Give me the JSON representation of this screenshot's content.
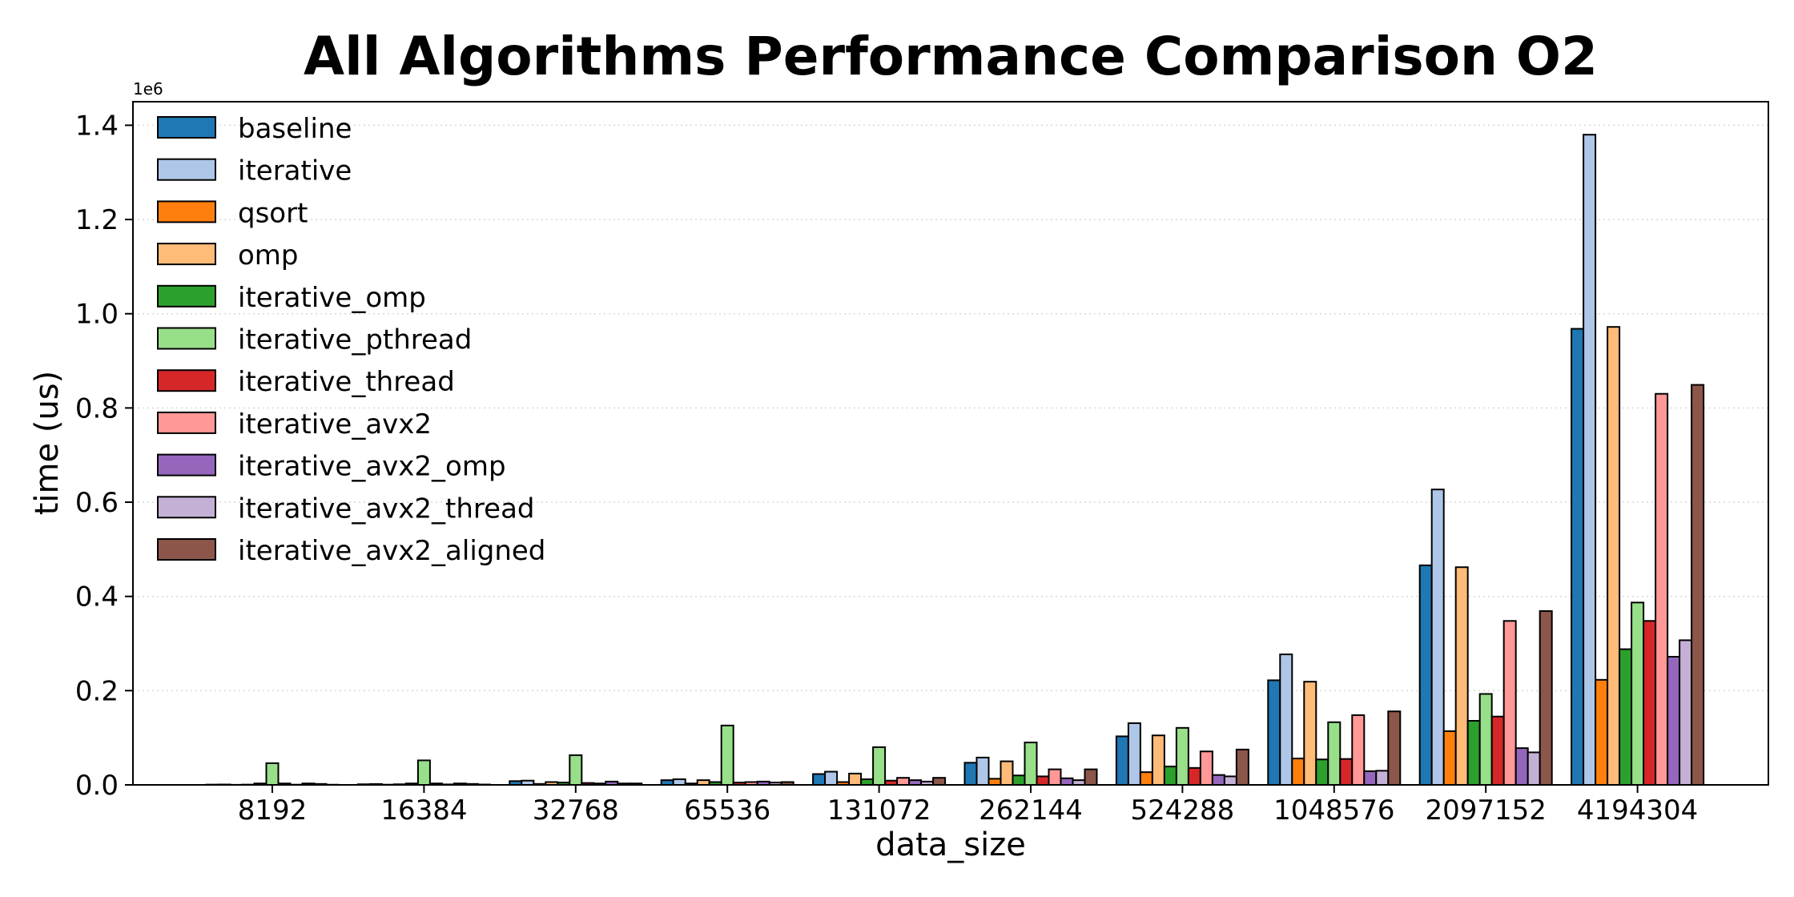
{
  "chart_data": {
    "type": "bar",
    "title": "All Algorithms Performance Comparison O2",
    "xlabel": "data_size",
    "ylabel": "time (us)",
    "y_offset_label": "1e6",
    "ylim": [
      0,
      1.45
    ],
    "yticks": [
      0.0,
      0.2,
      0.4,
      0.6,
      0.8,
      1.0,
      1.2,
      1.4
    ],
    "ytick_labels": [
      "0.0",
      "0.2",
      "0.4",
      "0.6",
      "0.8",
      "1.0",
      "1.2",
      "1.4"
    ],
    "grid": "horizontal dotted",
    "legend_position": "top-left",
    "categories": [
      "8192",
      "16384",
      "32768",
      "65536",
      "131072",
      "262144",
      "524288",
      "1048576",
      "2097152",
      "4194304"
    ],
    "series": [
      {
        "name": "baseline",
        "color": "#1f77b4",
        "values": [
          0.0006,
          0.0013,
          0.008,
          0.01,
          0.023,
          0.047,
          0.103,
          0.222,
          0.466,
          0.968
        ]
      },
      {
        "name": "iterative",
        "color": "#aec7e8",
        "values": [
          0.0008,
          0.0018,
          0.009,
          0.012,
          0.028,
          0.058,
          0.131,
          0.277,
          0.627,
          1.38
        ]
      },
      {
        "name": "qsort",
        "color": "#ff7f0e",
        "values": [
          0.0002,
          0.0005,
          0.002,
          0.003,
          0.006,
          0.013,
          0.027,
          0.056,
          0.114,
          0.223
        ]
      },
      {
        "name": "omp",
        "color": "#ffbb78",
        "values": [
          0.0006,
          0.0013,
          0.006,
          0.01,
          0.024,
          0.05,
          0.105,
          0.219,
          0.462,
          0.972
        ]
      },
      {
        "name": "iterative_omp",
        "color": "#2ca02c",
        "values": [
          0.003,
          0.003,
          0.005,
          0.006,
          0.012,
          0.02,
          0.039,
          0.054,
          0.136,
          0.288
        ]
      },
      {
        "name": "iterative_pthread",
        "color": "#98df8a",
        "values": [
          0.046,
          0.052,
          0.063,
          0.126,
          0.08,
          0.09,
          0.121,
          0.133,
          0.193,
          0.387
        ]
      },
      {
        "name": "iterative_thread",
        "color": "#d62728",
        "values": [
          0.003,
          0.003,
          0.004,
          0.005,
          0.009,
          0.018,
          0.036,
          0.055,
          0.145,
          0.348
        ]
      },
      {
        "name": "iterative_avx2",
        "color": "#ff9896",
        "values": [
          0.0005,
          0.001,
          0.003,
          0.006,
          0.015,
          0.033,
          0.071,
          0.148,
          0.348,
          0.83
        ]
      },
      {
        "name": "iterative_avx2_omp",
        "color": "#9467bd",
        "values": [
          0.003,
          0.003,
          0.007,
          0.007,
          0.01,
          0.014,
          0.021,
          0.029,
          0.078,
          0.272
        ]
      },
      {
        "name": "iterative_avx2_thread",
        "color": "#c5b0d5",
        "values": [
          0.002,
          0.002,
          0.003,
          0.005,
          0.007,
          0.01,
          0.018,
          0.03,
          0.069,
          0.307
        ]
      },
      {
        "name": "iterative_avx2_aligned",
        "color": "#8c564b",
        "values": [
          0.0004,
          0.0008,
          0.003,
          0.006,
          0.015,
          0.033,
          0.075,
          0.156,
          0.369,
          0.849
        ]
      }
    ]
  }
}
